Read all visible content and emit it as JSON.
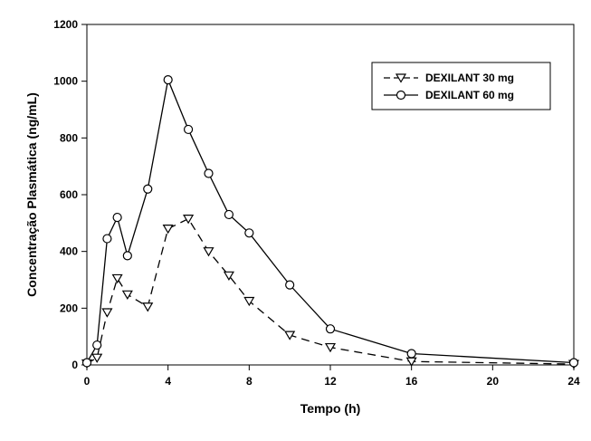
{
  "chart_data": {
    "type": "line",
    "xlabel": "Tempo (h)",
    "ylabel": "Concentração Plasmática (ng/mL)",
    "xlim": [
      0,
      24
    ],
    "ylim": [
      0,
      1200
    ],
    "xticks": [
      0,
      4,
      8,
      12,
      16,
      20,
      24
    ],
    "yticks": [
      0,
      200,
      400,
      600,
      800,
      1000,
      1200
    ],
    "grid": false,
    "legend_position": "top-right",
    "series": [
      {
        "name": "DEXILANT 30 mg",
        "line_style": "dashed",
        "marker": "triangle-down",
        "color": "#000000",
        "x": [
          0,
          0.5,
          1,
          1.5,
          2,
          3,
          4,
          5,
          6,
          7,
          8,
          10,
          12,
          16,
          24
        ],
        "y": [
          5,
          25,
          185,
          305,
          248,
          205,
          480,
          515,
          400,
          315,
          225,
          105,
          62,
          12,
          3
        ]
      },
      {
        "name": "DEXILANT 60 mg",
        "line_style": "solid",
        "marker": "circle",
        "color": "#000000",
        "x": [
          0,
          0.5,
          1,
          1.5,
          2,
          3,
          4,
          5,
          6,
          7,
          8,
          10,
          12,
          16,
          24
        ],
        "y": [
          8,
          70,
          445,
          520,
          385,
          620,
          1005,
          830,
          675,
          530,
          465,
          282,
          127,
          40,
          8
        ]
      }
    ]
  }
}
